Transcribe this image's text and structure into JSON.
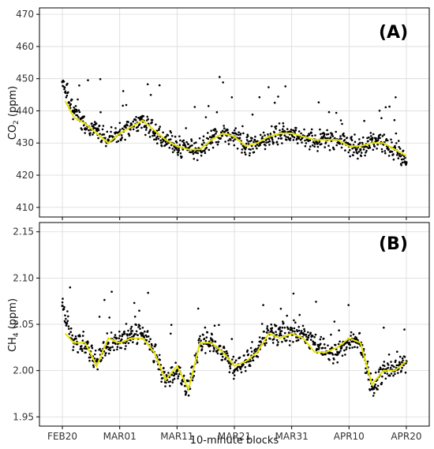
{
  "chart_data": [
    {
      "type": "scatter",
      "panel_label": "(A)",
      "ylabel_main": "CO",
      "ylabel_sub": "2",
      "ylabel_unit": " (ppm)",
      "ylim": [
        407,
        472
      ],
      "yticks": [
        410,
        420,
        430,
        440,
        450,
        460,
        470
      ],
      "xlim": [
        -4,
        64
      ],
      "x": [
        0,
        2,
        4,
        6,
        8,
        10,
        12,
        14,
        16,
        18,
        20,
        22,
        24,
        26,
        28,
        30,
        32,
        34,
        36,
        38,
        40,
        42,
        44,
        46,
        48,
        50,
        52,
        54,
        56,
        58,
        60
      ],
      "y_points": [
        449,
        440,
        436,
        434,
        431,
        433,
        436,
        437,
        433,
        431,
        429,
        428,
        428,
        431,
        433,
        432,
        429,
        430,
        432,
        433,
        433,
        432,
        431,
        431,
        431,
        429,
        428,
        431,
        430,
        428,
        424
      ],
      "smooth_series": {
        "name": "",
        "color": "#e8e400",
        "x": [
          0.5,
          2,
          4,
          6,
          8,
          10,
          12,
          14,
          16,
          18,
          20,
          22,
          24,
          26,
          28,
          30,
          32,
          34,
          36,
          38,
          40,
          42,
          44,
          46,
          48,
          50,
          52,
          54,
          56,
          58,
          60
        ],
        "values": [
          443,
          438,
          436,
          433,
          430,
          433,
          435,
          437,
          434,
          431,
          429,
          428,
          428,
          431,
          433,
          432,
          429,
          430,
          432,
          433,
          433,
          432,
          431,
          431,
          431,
          429,
          429,
          430,
          430,
          428,
          426
        ]
      },
      "grid": true,
      "point_color": "#000000"
    },
    {
      "type": "scatter",
      "panel_label": "(B)",
      "ylabel_main": "CH",
      "ylabel_sub": "4",
      "ylabel_unit": " (ppm)",
      "ylim": [
        1.94,
        2.16
      ],
      "yticks": [
        1.95,
        2.0,
        2.05,
        2.1,
        2.15
      ],
      "ytick_labels": [
        "1.95",
        "2.00",
        "2.05",
        "2.10",
        "2.15"
      ],
      "xlim": [
        -4,
        64
      ],
      "x": [
        0,
        2,
        4,
        6,
        8,
        10,
        12,
        14,
        16,
        18,
        20,
        22,
        24,
        26,
        28,
        30,
        32,
        34,
        36,
        38,
        40,
        42,
        44,
        46,
        48,
        50,
        52,
        54,
        56,
        58,
        60
      ],
      "y_points": [
        2.07,
        2.03,
        2.03,
        2.01,
        2.03,
        2.03,
        2.04,
        2.04,
        2.02,
        1.99,
        2.0,
        1.98,
        2.03,
        2.03,
        2.02,
        2.0,
        2.01,
        2.02,
        2.04,
        2.04,
        2.04,
        2.04,
        2.03,
        2.02,
        2.02,
        2.03,
        2.03,
        1.98,
        2.0,
        2.0,
        2.01
      ],
      "smooth_series": {
        "name": "",
        "color": "#e8e400",
        "x": [
          0.5,
          2,
          4,
          6,
          8,
          10,
          12,
          14,
          16,
          18,
          20,
          22,
          24,
          26,
          28,
          30,
          32,
          34,
          36,
          38,
          40,
          42,
          44,
          46,
          48,
          50,
          52,
          54,
          56,
          58,
          60
        ],
        "values": [
          2.04,
          2.03,
          2.03,
          2.005,
          2.035,
          2.03,
          2.035,
          2.035,
          2.02,
          1.99,
          2.005,
          1.98,
          2.03,
          2.03,
          2.02,
          2.005,
          2.01,
          2.02,
          2.04,
          2.035,
          2.04,
          2.035,
          2.02,
          2.02,
          2.025,
          2.035,
          2.03,
          1.985,
          2.0,
          2.0,
          2.01
        ]
      },
      "grid": true,
      "point_color": "#000000"
    }
  ],
  "x_axis": {
    "tick_positions": [
      0,
      10,
      20,
      30,
      40,
      50,
      60
    ],
    "tick_labels": [
      "FEB20",
      "MAR01",
      "MAR11",
      "MAR21",
      "MAR31",
      "APR10",
      "APR20"
    ],
    "xlabel": "10-minute blocks"
  }
}
